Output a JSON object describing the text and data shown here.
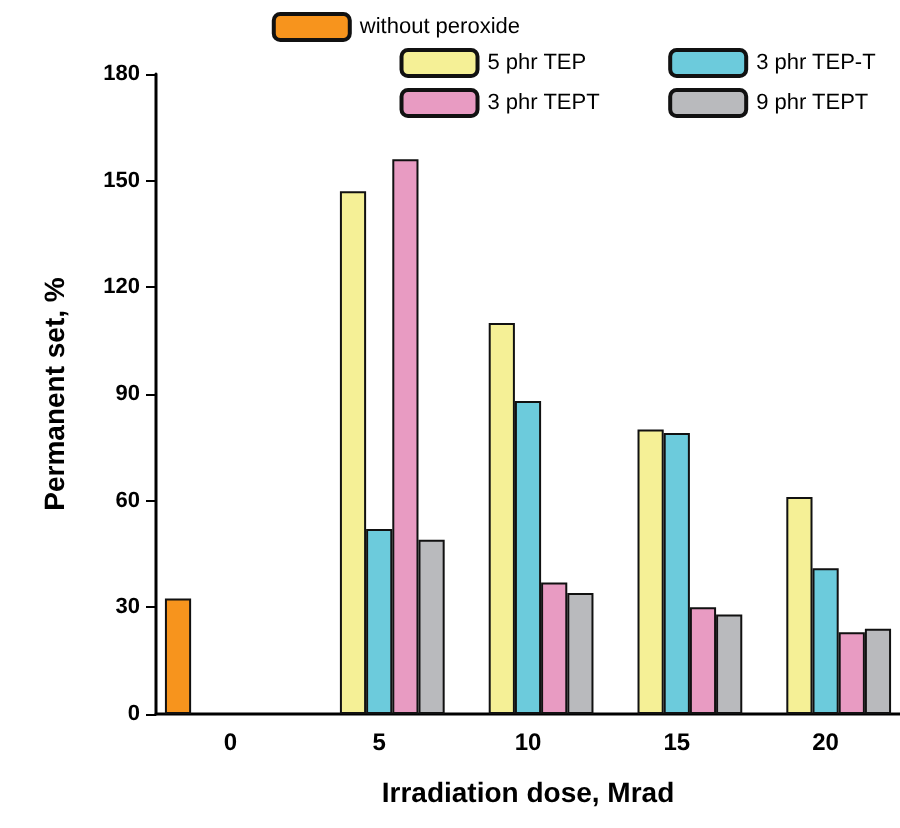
{
  "chart_data": {
    "type": "bar",
    "xlabel": "Irradiation dose, Mrad",
    "ylabel": "Permanent set, %",
    "categories": [
      "0",
      "5",
      "10",
      "15",
      "20"
    ],
    "series": [
      {
        "name": "without peroxide",
        "color": "#f7941d",
        "values": [
          32.5,
          null,
          null,
          null,
          null
        ]
      },
      {
        "name": "5 phr TEP",
        "color": "#f5f096",
        "values": [
          null,
          147,
          110,
          80,
          61
        ]
      },
      {
        "name": "3 phr TEP-T",
        "color": "#6ccbdc",
        "values": [
          null,
          52,
          88,
          79,
          41
        ]
      },
      {
        "name": "3 phr TEPT",
        "color": "#e89bc2",
        "values": [
          null,
          156,
          37,
          30,
          23
        ]
      },
      {
        "name": "9 phr TEPT",
        "color": "#b9babd",
        "values": [
          null,
          49,
          34,
          28,
          24
        ]
      }
    ],
    "ylim": [
      0,
      180
    ],
    "yticks": [
      0,
      30,
      60,
      90,
      120,
      150,
      180
    ],
    "grid": false,
    "legend": "top right"
  }
}
